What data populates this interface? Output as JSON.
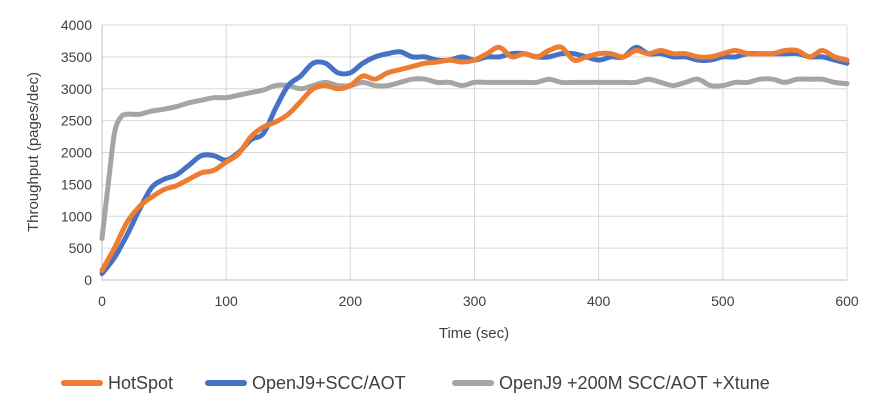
{
  "chart_data": {
    "type": "line",
    "title": "",
    "xlabel": "Time (sec)",
    "ylabel": "Throughput (pages/dec)",
    "xlim": [
      0,
      600
    ],
    "ylim": [
      0,
      4000
    ],
    "x_ticks": [
      0,
      100,
      200,
      300,
      400,
      500,
      600
    ],
    "y_ticks": [
      0,
      500,
      1000,
      1500,
      2000,
      2500,
      3000,
      3500,
      4000
    ],
    "grid": true,
    "legend_position": "bottom",
    "series": [
      {
        "name": "HotSpot",
        "color": "#ED7D31",
        "x": [
          0,
          10,
          20,
          30,
          40,
          50,
          60,
          70,
          80,
          90,
          100,
          110,
          120,
          130,
          140,
          150,
          160,
          170,
          180,
          190,
          200,
          210,
          220,
          230,
          240,
          250,
          260,
          270,
          280,
          290,
          300,
          310,
          320,
          330,
          340,
          350,
          360,
          370,
          380,
          390,
          400,
          410,
          420,
          430,
          440,
          450,
          460,
          470,
          480,
          490,
          500,
          510,
          520,
          530,
          540,
          550,
          560,
          570,
          580,
          590,
          600
        ],
        "values": [
          150,
          500,
          900,
          1150,
          1300,
          1420,
          1480,
          1580,
          1680,
          1720,
          1850,
          1980,
          2250,
          2400,
          2480,
          2600,
          2800,
          3000,
          3050,
          3000,
          3050,
          3200,
          3150,
          3250,
          3300,
          3350,
          3400,
          3420,
          3450,
          3420,
          3450,
          3550,
          3650,
          3500,
          3550,
          3500,
          3600,
          3650,
          3450,
          3500,
          3550,
          3550,
          3500,
          3600,
          3550,
          3600,
          3550,
          3550,
          3500,
          3500,
          3550,
          3600,
          3550,
          3550,
          3550,
          3600,
          3600,
          3500,
          3600,
          3500,
          3450
        ]
      },
      {
        "name": "OpenJ9+SCC/AOT",
        "color": "#4472C4",
        "x": [
          0,
          10,
          20,
          30,
          40,
          50,
          60,
          70,
          80,
          90,
          100,
          110,
          120,
          130,
          140,
          150,
          160,
          170,
          180,
          190,
          200,
          210,
          220,
          230,
          240,
          250,
          260,
          270,
          280,
          290,
          300,
          310,
          320,
          330,
          340,
          350,
          360,
          370,
          380,
          390,
          400,
          410,
          420,
          430,
          440,
          450,
          460,
          470,
          480,
          490,
          500,
          510,
          520,
          530,
          540,
          550,
          560,
          570,
          580,
          590,
          600
        ],
        "values": [
          100,
          350,
          700,
          1100,
          1450,
          1580,
          1650,
          1800,
          1950,
          1950,
          1880,
          2000,
          2200,
          2300,
          2700,
          3050,
          3200,
          3400,
          3400,
          3250,
          3250,
          3400,
          3500,
          3550,
          3580,
          3500,
          3500,
          3450,
          3450,
          3500,
          3450,
          3500,
          3500,
          3550,
          3550,
          3500,
          3500,
          3550,
          3550,
          3500,
          3450,
          3500,
          3500,
          3650,
          3550,
          3550,
          3500,
          3500,
          3450,
          3450,
          3500,
          3500,
          3550,
          3550,
          3550,
          3550,
          3550,
          3500,
          3500,
          3450,
          3400
        ]
      },
      {
        "name": "OpenJ9 +200M SCC/AOT +Xtune",
        "color": "#A5A5A5",
        "x": [
          0,
          5,
          10,
          15,
          20,
          30,
          40,
          50,
          60,
          70,
          80,
          90,
          100,
          110,
          120,
          130,
          140,
          150,
          160,
          170,
          180,
          190,
          200,
          210,
          220,
          230,
          240,
          250,
          260,
          270,
          280,
          290,
          300,
          310,
          320,
          330,
          340,
          350,
          360,
          370,
          380,
          390,
          400,
          410,
          420,
          430,
          440,
          450,
          460,
          470,
          480,
          490,
          500,
          510,
          520,
          530,
          540,
          550,
          560,
          570,
          580,
          590,
          600
        ],
        "values": [
          650,
          1500,
          2300,
          2550,
          2600,
          2600,
          2650,
          2680,
          2720,
          2780,
          2820,
          2860,
          2860,
          2900,
          2940,
          2980,
          3050,
          3050,
          3000,
          3050,
          3100,
          3050,
          3050,
          3100,
          3050,
          3050,
          3100,
          3150,
          3150,
          3100,
          3100,
          3050,
          3100,
          3100,
          3100,
          3100,
          3100,
          3100,
          3150,
          3100,
          3100,
          3100,
          3100,
          3100,
          3100,
          3100,
          3150,
          3100,
          3050,
          3100,
          3150,
          3050,
          3050,
          3100,
          3100,
          3150,
          3150,
          3100,
          3150,
          3150,
          3150,
          3100,
          3080
        ]
      }
    ]
  }
}
